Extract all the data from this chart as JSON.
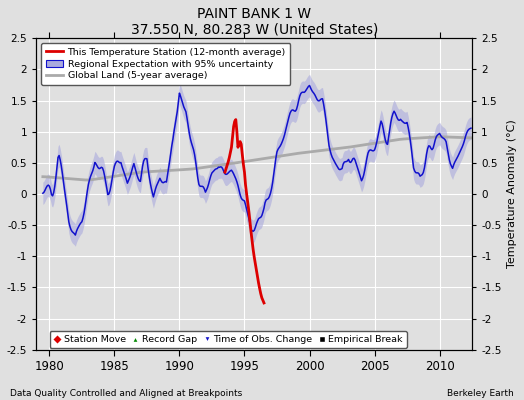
{
  "title": "PAINT BANK 1 W",
  "subtitle": "37.550 N, 80.283 W (United States)",
  "ylabel": "Temperature Anomaly (°C)",
  "xlabel_left": "Data Quality Controlled and Aligned at Breakpoints",
  "xlabel_right": "Berkeley Earth",
  "xlim": [
    1979.0,
    2012.5
  ],
  "ylim": [
    -2.5,
    2.5
  ],
  "yticks": [
    -2.5,
    -2.0,
    -1.5,
    -1.0,
    -0.5,
    0.0,
    0.5,
    1.0,
    1.5,
    2.0,
    2.5
  ],
  "xticks": [
    1980,
    1985,
    1990,
    1995,
    2000,
    2005,
    2010
  ],
  "bg_color": "#e0e0e0",
  "grid_color": "#ffffff",
  "blue_line_color": "#1111cc",
  "blue_fill_color": "#aaaadd",
  "red_line_color": "#dd0000",
  "gray_line_color": "#aaaaaa",
  "figsize": [
    5.24,
    4.0
  ],
  "dpi": 100
}
